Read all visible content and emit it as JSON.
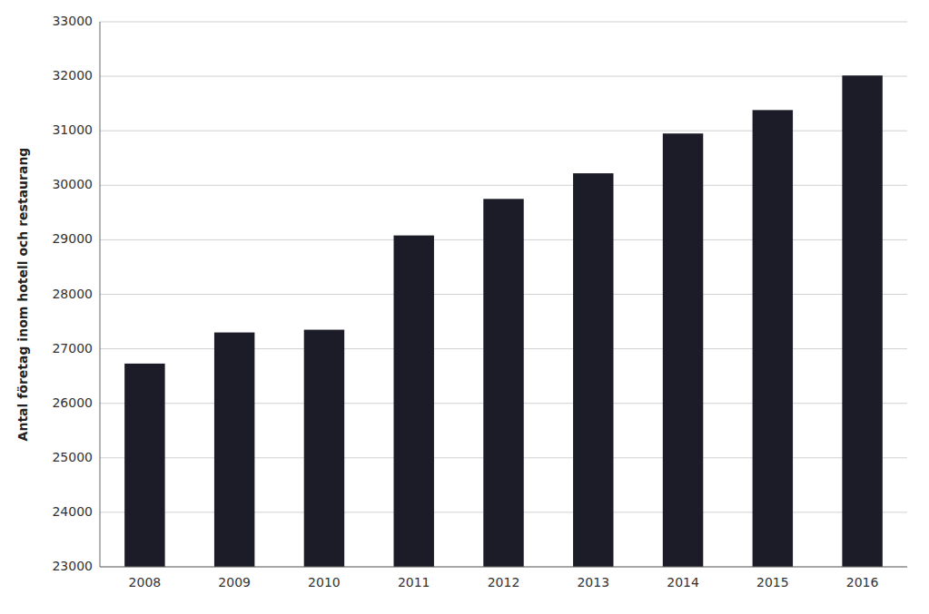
{
  "chart_data": {
    "type": "bar",
    "categories": [
      "2008",
      "2009",
      "2010",
      "2011",
      "2012",
      "2013",
      "2014",
      "2015",
      "2016"
    ],
    "values": [
      26729,
      27300,
      27350,
      29080,
      29750,
      30220,
      30950,
      31380,
      32014
    ],
    "color": "#1c1c28",
    "ylabel": "Antal företag inom hotell och restaurang",
    "ylim": [
      23000,
      33000
    ],
    "yticks": [
      23000,
      24000,
      25000,
      26000,
      27000,
      28000,
      29000,
      30000,
      31000,
      32000,
      33000
    ],
    "grid": true
  }
}
